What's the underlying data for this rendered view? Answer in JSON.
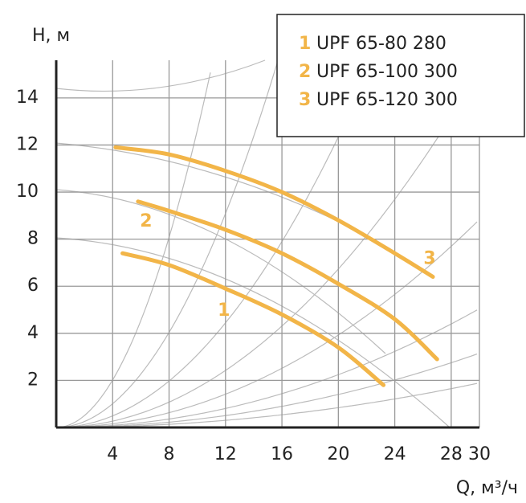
{
  "chart_data": {
    "type": "line",
    "y_label": "H, м",
    "x_label": "Q, м³/ч",
    "xlim": [
      0,
      30
    ],
    "xticks": [
      4,
      8,
      12,
      16,
      20,
      24,
      28,
      30
    ],
    "ylim": [
      0,
      15.6
    ],
    "yticks": [
      2,
      4,
      6,
      8,
      10,
      12,
      14
    ],
    "grid": true,
    "series": [
      {
        "label": "1",
        "name": "UPF 65-80 280",
        "color": "#f2b548",
        "x": [
          4.7,
          8,
          12,
          16,
          20,
          23.2
        ],
        "values": [
          7.4,
          6.9,
          5.9,
          4.8,
          3.4,
          1.8
        ]
      },
      {
        "label": "2",
        "name": "UPF 65-100 300",
        "color": "#f2b548",
        "x": [
          5.8,
          8,
          12,
          16,
          20,
          24,
          27
        ],
        "values": [
          9.6,
          9.2,
          8.4,
          7.4,
          6.1,
          4.6,
          2.9
        ]
      },
      {
        "label": "3",
        "name": "UPF 65-120 300",
        "color": "#f2b548",
        "x": [
          4.2,
          8,
          12,
          16,
          20,
          24,
          26.7
        ],
        "values": [
          11.9,
          11.6,
          10.9,
          10.0,
          8.8,
          7.4,
          6.4
        ]
      }
    ]
  }
}
